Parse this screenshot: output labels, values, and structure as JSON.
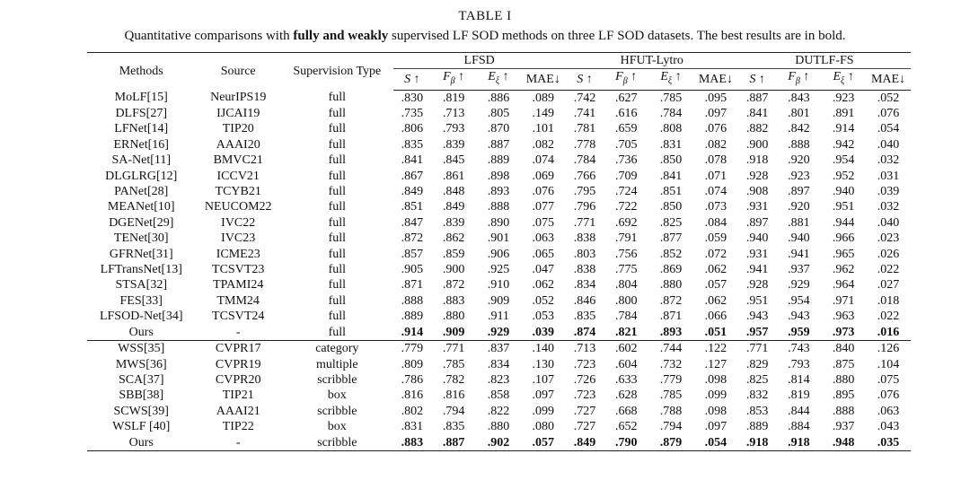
{
  "table_label": "TABLE I",
  "caption": {
    "before": "Quantitative comparisons with ",
    "bold": "fully and weakly",
    "after": " supervised LF SOD methods on three LF SOD datasets. The best results are in bold."
  },
  "header": {
    "methods": "Methods",
    "source": "Source",
    "supervision": "Supervision Type",
    "datasets": [
      "LFSD",
      "HFUT-Lytro",
      "DUTLF-FS"
    ],
    "metrics": [
      {
        "sym": "S",
        "sub": "",
        "arrow": " ↑"
      },
      {
        "sym": "F",
        "sub": "β",
        "arrow": " ↑"
      },
      {
        "sym": "E",
        "sub": "ξ",
        "arrow": " ↑"
      },
      {
        "sym": "MAE",
        "sub": "",
        "arrow": "↓"
      }
    ]
  },
  "full_rows": [
    {
      "method": "MoLF[15]",
      "source": "NeurIPS19",
      "type": "full",
      "values": [
        ".830",
        ".819",
        ".886",
        ".089",
        ".742",
        ".627",
        ".785",
        ".095",
        ".887",
        ".843",
        ".923",
        ".052"
      ]
    },
    {
      "method": "DLFS[27]",
      "source": "IJCAI19",
      "type": "full",
      "values": [
        ".735",
        ".713",
        ".805",
        ".149",
        ".741",
        ".616",
        ".784",
        ".097",
        ".841",
        ".801",
        ".891",
        ".076"
      ]
    },
    {
      "method": "LFNet[14]",
      "source": "TIP20",
      "type": "full",
      "values": [
        ".806",
        ".793",
        ".870",
        ".101",
        ".781",
        ".659",
        ".808",
        ".076",
        ".882",
        ".842",
        ".914",
        ".054"
      ]
    },
    {
      "method": "ERNet[16]",
      "source": "AAAI20",
      "type": "full",
      "values": [
        ".835",
        ".839",
        ".887",
        ".082",
        ".778",
        ".705",
        ".831",
        ".082",
        ".900",
        ".888",
        ".942",
        ".040"
      ]
    },
    {
      "method": "SA-Net[11]",
      "source": "BMVC21",
      "type": "full",
      "values": [
        ".841",
        ".845",
        ".889",
        ".074",
        ".784",
        ".736",
        ".850",
        ".078",
        ".918",
        ".920",
        ".954",
        ".032"
      ]
    },
    {
      "method": "DLGLRG[12]",
      "source": "ICCV21",
      "type": "full",
      "values": [
        ".867",
        ".861",
        ".898",
        ".069",
        ".766",
        ".709",
        ".841",
        ".071",
        ".928",
        ".923",
        ".952",
        ".031"
      ]
    },
    {
      "method": "PANet[28]",
      "source": "TCYB21",
      "type": "full",
      "values": [
        ".849",
        ".848",
        ".893",
        ".076",
        ".795",
        ".724",
        ".851",
        ".074",
        ".908",
        ".897",
        ".940",
        ".039"
      ]
    },
    {
      "method": "MEANet[10]",
      "source": "NEUCOM22",
      "type": "full",
      "values": [
        ".851",
        ".849",
        ".888",
        ".077",
        ".796",
        ".722",
        ".850",
        ".073",
        ".931",
        ".920",
        ".951",
        ".032"
      ]
    },
    {
      "method": "DGENet[29]",
      "source": "IVC22",
      "type": "full",
      "values": [
        ".847",
        ".839",
        ".890",
        ".075",
        ".771",
        ".692",
        ".825",
        ".084",
        ".897",
        ".881",
        ".944",
        ".040"
      ]
    },
    {
      "method": "TENet[30]",
      "source": "IVC23",
      "type": "full",
      "values": [
        ".872",
        ".862",
        ".901",
        ".063",
        ".838",
        ".791",
        ".877",
        ".059",
        ".940",
        ".940",
        ".966",
        ".023"
      ]
    },
    {
      "method": "GFRNet[31]",
      "source": "ICME23",
      "type": "full",
      "values": [
        ".857",
        ".859",
        ".906",
        ".065",
        ".803",
        ".756",
        ".852",
        ".072",
        ".931",
        ".941",
        ".965",
        ".026"
      ]
    },
    {
      "method": "LFTransNet[13]",
      "source": "TCSVT23",
      "type": "full",
      "values": [
        ".905",
        ".900",
        ".925",
        ".047",
        ".838",
        ".775",
        ".869",
        ".062",
        ".941",
        ".937",
        ".962",
        ".022"
      ]
    },
    {
      "method": "STSA[32]",
      "source": "TPAMI24",
      "type": "full",
      "values": [
        ".871",
        ".872",
        ".910",
        ".062",
        ".834",
        ".804",
        ".880",
        ".057",
        ".928",
        ".929",
        ".964",
        ".027"
      ]
    },
    {
      "method": "FES[33]",
      "source": "TMM24",
      "type": "full",
      "values": [
        ".888",
        ".883",
        ".909",
        ".052",
        ".846",
        ".800",
        ".872",
        ".062",
        ".951",
        ".954",
        ".971",
        ".018"
      ]
    },
    {
      "method": "LFSOD-Net[34]",
      "source": "TCSVT24",
      "type": "full",
      "values": [
        ".889",
        ".880",
        ".911",
        ".053",
        ".835",
        ".784",
        ".871",
        ".066",
        ".943",
        ".943",
        ".963",
        ".022"
      ]
    },
    {
      "method": "Ours",
      "source": "-",
      "type": "full",
      "bold": true,
      "values": [
        ".914",
        ".909",
        ".929",
        ".039",
        ".874",
        ".821",
        ".893",
        ".051",
        ".957",
        ".959",
        ".973",
        ".016"
      ]
    }
  ],
  "weak_rows": [
    {
      "method": "WSS[35]",
      "source": "CVPR17",
      "type": "category",
      "values": [
        ".779",
        ".771",
        ".837",
        ".140",
        ".713",
        ".602",
        ".744",
        ".122",
        ".771",
        ".743",
        ".840",
        ".126"
      ]
    },
    {
      "method": "MWS[36]",
      "source": "CVPR19",
      "type": "multiple",
      "values": [
        ".809",
        ".785",
        ".834",
        ".130",
        ".723",
        ".604",
        ".732",
        ".127",
        ".829",
        ".793",
        ".875",
        ".104"
      ]
    },
    {
      "method": "SCA[37]",
      "source": "CVPR20",
      "type": "scribble",
      "values": [
        ".786",
        ".782",
        ".823",
        ".107",
        ".726",
        ".633",
        ".779",
        ".098",
        ".825",
        ".814",
        ".880",
        ".075"
      ]
    },
    {
      "method": "SBB[38]",
      "source": "TIP21",
      "type": "box",
      "values": [
        ".816",
        ".816",
        ".858",
        ".097",
        ".723",
        ".628",
        ".785",
        ".099",
        ".832",
        ".819",
        ".895",
        ".076"
      ]
    },
    {
      "method": "SCWS[39]",
      "source": "AAAI21",
      "type": "scribble",
      "values": [
        ".802",
        ".794",
        ".822",
        ".099",
        ".727",
        ".668",
        ".788",
        ".098",
        ".853",
        ".844",
        ".888",
        ".063"
      ]
    },
    {
      "method": "WSLF [40]",
      "source": "TIP22",
      "type": "box",
      "values": [
        ".831",
        ".835",
        ".880",
        ".080",
        ".727",
        ".652",
        ".794",
        ".097",
        ".889",
        ".884",
        ".937",
        ".043"
      ]
    },
    {
      "method": "Ours",
      "source": "-",
      "type": "scribble",
      "bold": true,
      "values": [
        ".883",
        ".887",
        ".902",
        ".057",
        ".849",
        ".790",
        ".879",
        ".054",
        ".918",
        ".918",
        ".948",
        ".035"
      ]
    }
  ]
}
